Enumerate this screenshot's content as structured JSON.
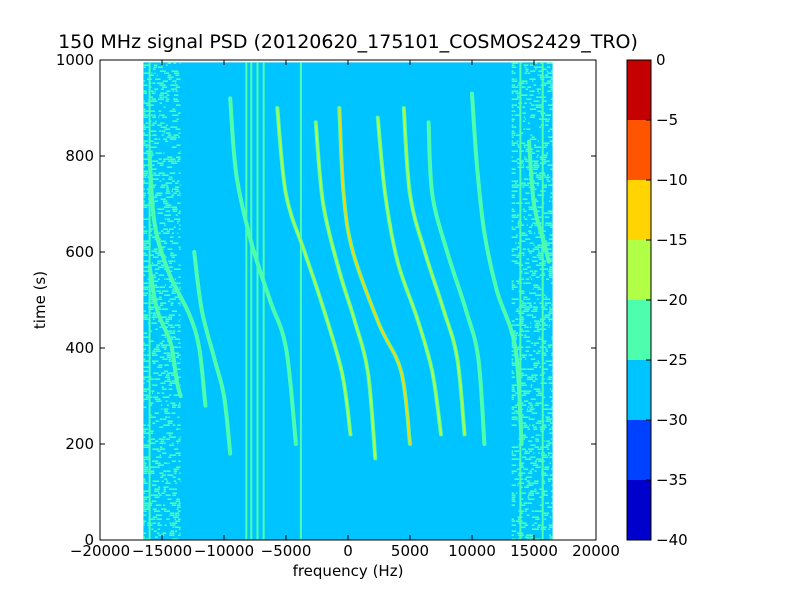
{
  "chart_data": {
    "type": "heatmap",
    "title": "150 MHz signal PSD (20120620_175101_COSMOS2429_TRO)",
    "xlabel": "frequency (Hz)",
    "ylabel": "time (s)",
    "xlim": [
      -20000,
      20000
    ],
    "ylim": [
      0,
      1000
    ],
    "x_ticks": [
      -20000,
      -15000,
      -10000,
      -5000,
      0,
      5000,
      10000,
      15000,
      20000
    ],
    "x_tick_labels": [
      "−20000",
      "−15000",
      "−10000",
      "−5000",
      "0",
      "5000",
      "10000",
      "15000",
      "20000"
    ],
    "y_ticks": [
      0,
      200,
      400,
      600,
      800,
      1000
    ],
    "y_tick_labels": [
      "0",
      "200",
      "400",
      "600",
      "800",
      "1000"
    ],
    "data_extent": {
      "freq_hz": [
        -16500,
        16500
      ],
      "time_s": [
        0,
        995
      ]
    },
    "background_level_db": -27.5,
    "edge_band_level_db": -22.5,
    "grid": false,
    "colorbar": {
      "min": -40,
      "max": 0,
      "tick_values": [
        0,
        -5,
        -10,
        -15,
        -20,
        -25,
        -30,
        -35,
        -40
      ],
      "tick_labels": [
        "0",
        "−5",
        "−10",
        "−15",
        "−20",
        "−25",
        "−30",
        "−35",
        "−40"
      ],
      "levels": [
        {
          "from": -40,
          "to": -35,
          "color": "#0000cc"
        },
        {
          "from": -35,
          "to": -30,
          "color": "#0040ff"
        },
        {
          "from": -30,
          "to": -25,
          "color": "#00c4ff"
        },
        {
          "from": -25,
          "to": -20,
          "color": "#4dffad"
        },
        {
          "from": -20,
          "to": -15,
          "color": "#b1ff46"
        },
        {
          "from": -15,
          "to": -10,
          "color": "#ffd400"
        },
        {
          "from": -10,
          "to": -5,
          "color": "#ff5500"
        },
        {
          "from": -5,
          "to": 0,
          "color": "#c40000"
        }
      ]
    },
    "vertical_lines": [
      {
        "freq_hz": -8200,
        "t_start": 0,
        "t_end": 995,
        "level_db": -22.5
      },
      {
        "freq_hz": -7800,
        "t_start": 0,
        "t_end": 995,
        "level_db": -22.5
      },
      {
        "freq_hz": -7300,
        "t_start": 0,
        "t_end": 995,
        "level_db": -22.5
      },
      {
        "freq_hz": -6800,
        "t_start": 0,
        "t_end": 995,
        "level_db": -22.5
      },
      {
        "freq_hz": -3800,
        "t_start": 0,
        "t_end": 995,
        "level_db": -22.5
      },
      {
        "freq_hz": -16000,
        "t_start": 0,
        "t_end": 995,
        "level_db": -22.5
      },
      {
        "freq_hz": 13900,
        "t_start": 0,
        "t_end": 995,
        "level_db": -22.5
      },
      {
        "freq_hz": 15700,
        "t_start": 0,
        "t_end": 995,
        "level_db": -22.5
      }
    ],
    "doppler_traces": [
      {
        "name": "",
        "level_db": -12.5,
        "points": [
          [
            -700,
            900
          ],
          [
            -350,
            720
          ],
          [
            400,
            600
          ],
          [
            2500,
            450
          ],
          [
            4300,
            350
          ],
          [
            5000,
            200
          ]
        ]
      },
      {
        "name": "",
        "level_db": -17.5,
        "points": [
          [
            -5700,
            900
          ],
          [
            -5000,
            720
          ],
          [
            -3500,
            600
          ],
          [
            -2200,
            500
          ],
          [
            -500,
            350
          ],
          [
            200,
            220
          ]
        ]
      },
      {
        "name": "",
        "level_db": -17.5,
        "points": [
          [
            -2600,
            870
          ],
          [
            -2000,
            700
          ],
          [
            -700,
            560
          ],
          [
            500,
            460
          ],
          [
            1600,
            350
          ],
          [
            2200,
            170
          ]
        ]
      },
      {
        "name": "",
        "level_db": -17.5,
        "points": [
          [
            2400,
            880
          ],
          [
            3000,
            720
          ],
          [
            4000,
            580
          ],
          [
            5600,
            460
          ],
          [
            6800,
            350
          ],
          [
            7500,
            220
          ]
        ]
      },
      {
        "name": "",
        "level_db": -17.5,
        "points": [
          [
            4500,
            900
          ],
          [
            5000,
            720
          ],
          [
            6200,
            600
          ],
          [
            7700,
            480
          ],
          [
            8800,
            380
          ],
          [
            9400,
            220
          ]
        ]
      },
      {
        "name": "",
        "level_db": -22.5,
        "points": [
          [
            6500,
            870
          ],
          [
            6800,
            720
          ],
          [
            8000,
            600
          ],
          [
            9500,
            480
          ],
          [
            10500,
            380
          ],
          [
            11000,
            200
          ]
        ]
      },
      {
        "name": "",
        "level_db": -22.5,
        "points": [
          [
            10000,
            930
          ],
          [
            10400,
            780
          ],
          [
            11000,
            640
          ],
          [
            12000,
            520
          ],
          [
            13500,
            400
          ],
          [
            14000,
            200
          ]
        ]
      },
      {
        "name": "",
        "level_db": -22.5,
        "points": [
          [
            -9500,
            920
          ],
          [
            -9000,
            760
          ],
          [
            -7800,
            620
          ],
          [
            -6300,
            500
          ],
          [
            -5000,
            400
          ],
          [
            -4200,
            200
          ]
        ]
      },
      {
        "name": "",
        "level_db": -22.5,
        "points": [
          [
            -16000,
            800
          ],
          [
            -15600,
            660
          ],
          [
            -14500,
            560
          ],
          [
            -12800,
            470
          ],
          [
            -12000,
            400
          ],
          [
            -11500,
            280
          ]
        ]
      },
      {
        "name": "",
        "level_db": -22.5,
        "points": [
          [
            -16000,
            570
          ],
          [
            -15400,
            480
          ],
          [
            -14300,
            410
          ],
          [
            -13800,
            330
          ],
          [
            -13500,
            300
          ]
        ]
      },
      {
        "name": "",
        "level_db": -22.5,
        "points": [
          [
            -12400,
            600
          ],
          [
            -11800,
            480
          ],
          [
            -10800,
            380
          ],
          [
            -10000,
            300
          ],
          [
            -9500,
            180
          ]
        ]
      },
      {
        "name": "",
        "level_db": -22.5,
        "points": [
          [
            14600,
            830
          ],
          [
            15000,
            700
          ],
          [
            15800,
            620
          ],
          [
            16200,
            580
          ]
        ]
      }
    ]
  }
}
